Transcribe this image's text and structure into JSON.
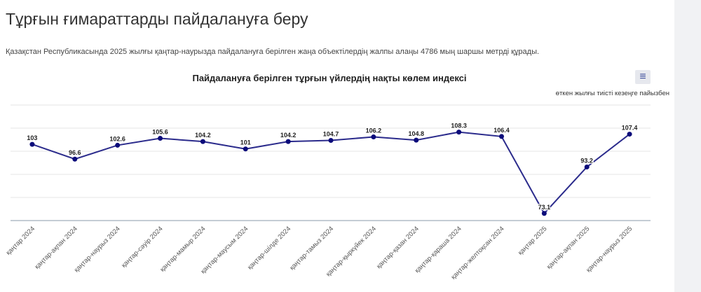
{
  "page": {
    "title": "Тұрғын ғимараттарды пайдалануға беру",
    "description": "Қазақстан Республикасында 2025 жылғы қаңтар-наурызда пайдалануға берілген жаңа объектілердің жалпы алаңы 4786 мың шаршы метрді құрады."
  },
  "chart_data": {
    "type": "line",
    "title": "Пайдалануға берілген тұрғын үйлердің нақты көлем индексі",
    "subtitle": "өткен жылғы тиісті кезеңге пайызбен",
    "menu_icon": "hamburger-menu-icon",
    "categories": [
      "қаңтар 2024",
      "қаңтар-ақпан 2024",
      "қаңтар-наурыз 2024",
      "қаңтар-сәуір 2024",
      "қаңтар-мамыр 2024",
      "қаңтар-маусым 2024",
      "қаңтар-шілде 2024",
      "қаңтар-тамыз 2024",
      "қаңтар-қыркүйек 2024",
      "қаңтар-қазан 2024",
      "қаңтар-қараша 2024",
      "қаңтар-желтоқсан 2024",
      "қаңтар 2025",
      "қаңтар-ақпан 2025",
      "қаңтар-наурыз 2025"
    ],
    "values": [
      103,
      96.6,
      102.6,
      105.6,
      104.2,
      101,
      104.2,
      104.7,
      106.2,
      104.8,
      108.3,
      106.4,
      73.1,
      93.2,
      107.4
    ],
    "ylim": [
      70,
      120
    ],
    "grid": true,
    "y_tick_labels_shown": false,
    "line_color": "#2b2b8c",
    "marker_color": "#0b0b7a"
  }
}
